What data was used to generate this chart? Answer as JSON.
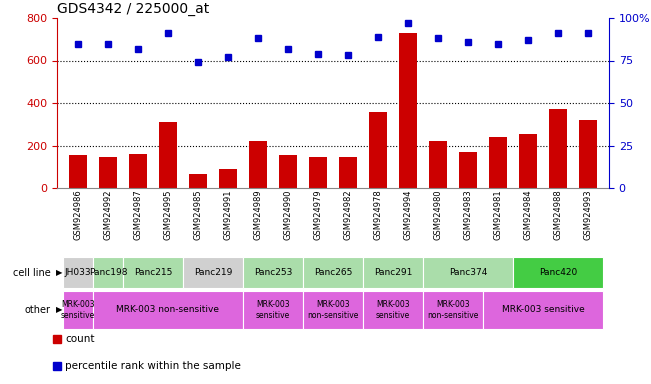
{
  "title": "GDS4342 / 225000_at",
  "gsm_labels": [
    "GSM924986",
    "GSM924992",
    "GSM924987",
    "GSM924995",
    "GSM924985",
    "GSM924991",
    "GSM924989",
    "GSM924990",
    "GSM924979",
    "GSM924982",
    "GSM924978",
    "GSM924994",
    "GSM924980",
    "GSM924983",
    "GSM924981",
    "GSM924984",
    "GSM924988",
    "GSM924993"
  ],
  "bar_values": [
    155,
    148,
    162,
    310,
    68,
    88,
    220,
    155,
    148,
    148,
    360,
    730,
    220,
    168,
    242,
    255,
    370,
    320
  ],
  "percentile_values": [
    85,
    85,
    82,
    91,
    74,
    77,
    88,
    82,
    79,
    78,
    89,
    97,
    88,
    86,
    85,
    87,
    91,
    91
  ],
  "bar_color": "#cc0000",
  "dot_color": "#0000cc",
  "left_ylim": [
    0,
    800
  ],
  "right_ylim": [
    0,
    100
  ],
  "left_yticks": [
    0,
    200,
    400,
    600,
    800
  ],
  "right_yticks": [
    0,
    25,
    50,
    75,
    100
  ],
  "right_yticklabels": [
    "0",
    "25",
    "50",
    "75",
    "100%"
  ],
  "background_color": "#ffffff",
  "left_ylabel_color": "#cc0000",
  "right_ylabel_color": "#0000cc",
  "cell_groups": [
    {
      "label": "JH033",
      "s": 0,
      "e": 1,
      "color": "#d0d0d0"
    },
    {
      "label": "Panc198",
      "s": 1,
      "e": 2,
      "color": "#aaddaa"
    },
    {
      "label": "Panc215",
      "s": 2,
      "e": 4,
      "color": "#aaddaa"
    },
    {
      "label": "Panc219",
      "s": 4,
      "e": 6,
      "color": "#d0d0d0"
    },
    {
      "label": "Panc253",
      "s": 6,
      "e": 8,
      "color": "#aaddaa"
    },
    {
      "label": "Panc265",
      "s": 8,
      "e": 10,
      "color": "#aaddaa"
    },
    {
      "label": "Panc291",
      "s": 10,
      "e": 12,
      "color": "#aaddaa"
    },
    {
      "label": "Panc374",
      "s": 12,
      "e": 15,
      "color": "#aaddaa"
    },
    {
      "label": "Panc420",
      "s": 15,
      "e": 18,
      "color": "#44cc44"
    }
  ],
  "other_groups": [
    {
      "label": "MRK-003\nsensitive",
      "s": 0,
      "e": 1,
      "color": "#dd66dd"
    },
    {
      "label": "MRK-003 non-sensitive",
      "s": 1,
      "e": 6,
      "color": "#dd66dd"
    },
    {
      "label": "MRK-003\nsensitive",
      "s": 6,
      "e": 8,
      "color": "#dd66dd"
    },
    {
      "label": "MRK-003\nnon-sensitive",
      "s": 8,
      "e": 10,
      "color": "#dd66dd"
    },
    {
      "label": "MRK-003\nsensitive",
      "s": 10,
      "e": 12,
      "color": "#dd66dd"
    },
    {
      "label": "MRK-003\nnon-sensitive",
      "s": 12,
      "e": 14,
      "color": "#dd66dd"
    },
    {
      "label": "MRK-003 sensitive",
      "s": 14,
      "e": 18,
      "color": "#dd66dd"
    }
  ]
}
